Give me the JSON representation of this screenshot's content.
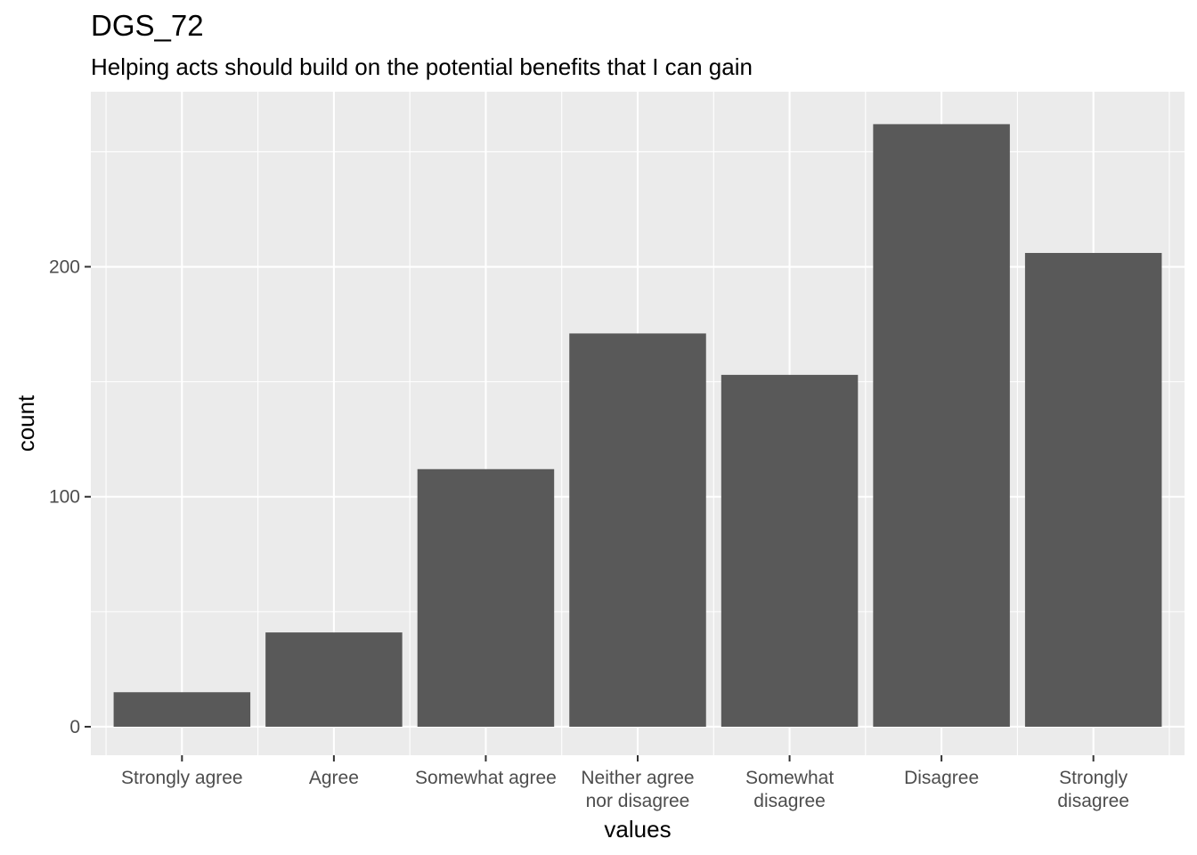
{
  "title": "DGS_72",
  "subtitle": "Helping acts should build on the potential benefits that I can gain",
  "colors": {
    "panel_background": "#ebebeb",
    "grid_major": "#ffffff",
    "bar_fill": "#595959",
    "tick_color": "#333333",
    "tick_label_color": "#4d4d4d"
  },
  "chart_data": {
    "type": "bar",
    "title": "DGS_72",
    "subtitle": "Helping acts should build on the potential benefits that I can gain",
    "xlabel": "values",
    "ylabel": "count",
    "categories": [
      [
        "Strongly agree"
      ],
      [
        "Agree"
      ],
      [
        "Somewhat agree"
      ],
      [
        "Neither agree",
        "nor disagree"
      ],
      [
        "Somewhat",
        "disagree"
      ],
      [
        "Disagree"
      ],
      [
        "Strongly",
        "disagree"
      ]
    ],
    "values": [
      15,
      41,
      112,
      171,
      153,
      262,
      206
    ],
    "ylim": [
      -12.4,
      276.1
    ],
    "yticks": [
      0,
      100,
      200
    ],
    "yticks_minor": [
      50,
      150,
      250
    ],
    "grid": true,
    "legend": "none"
  }
}
